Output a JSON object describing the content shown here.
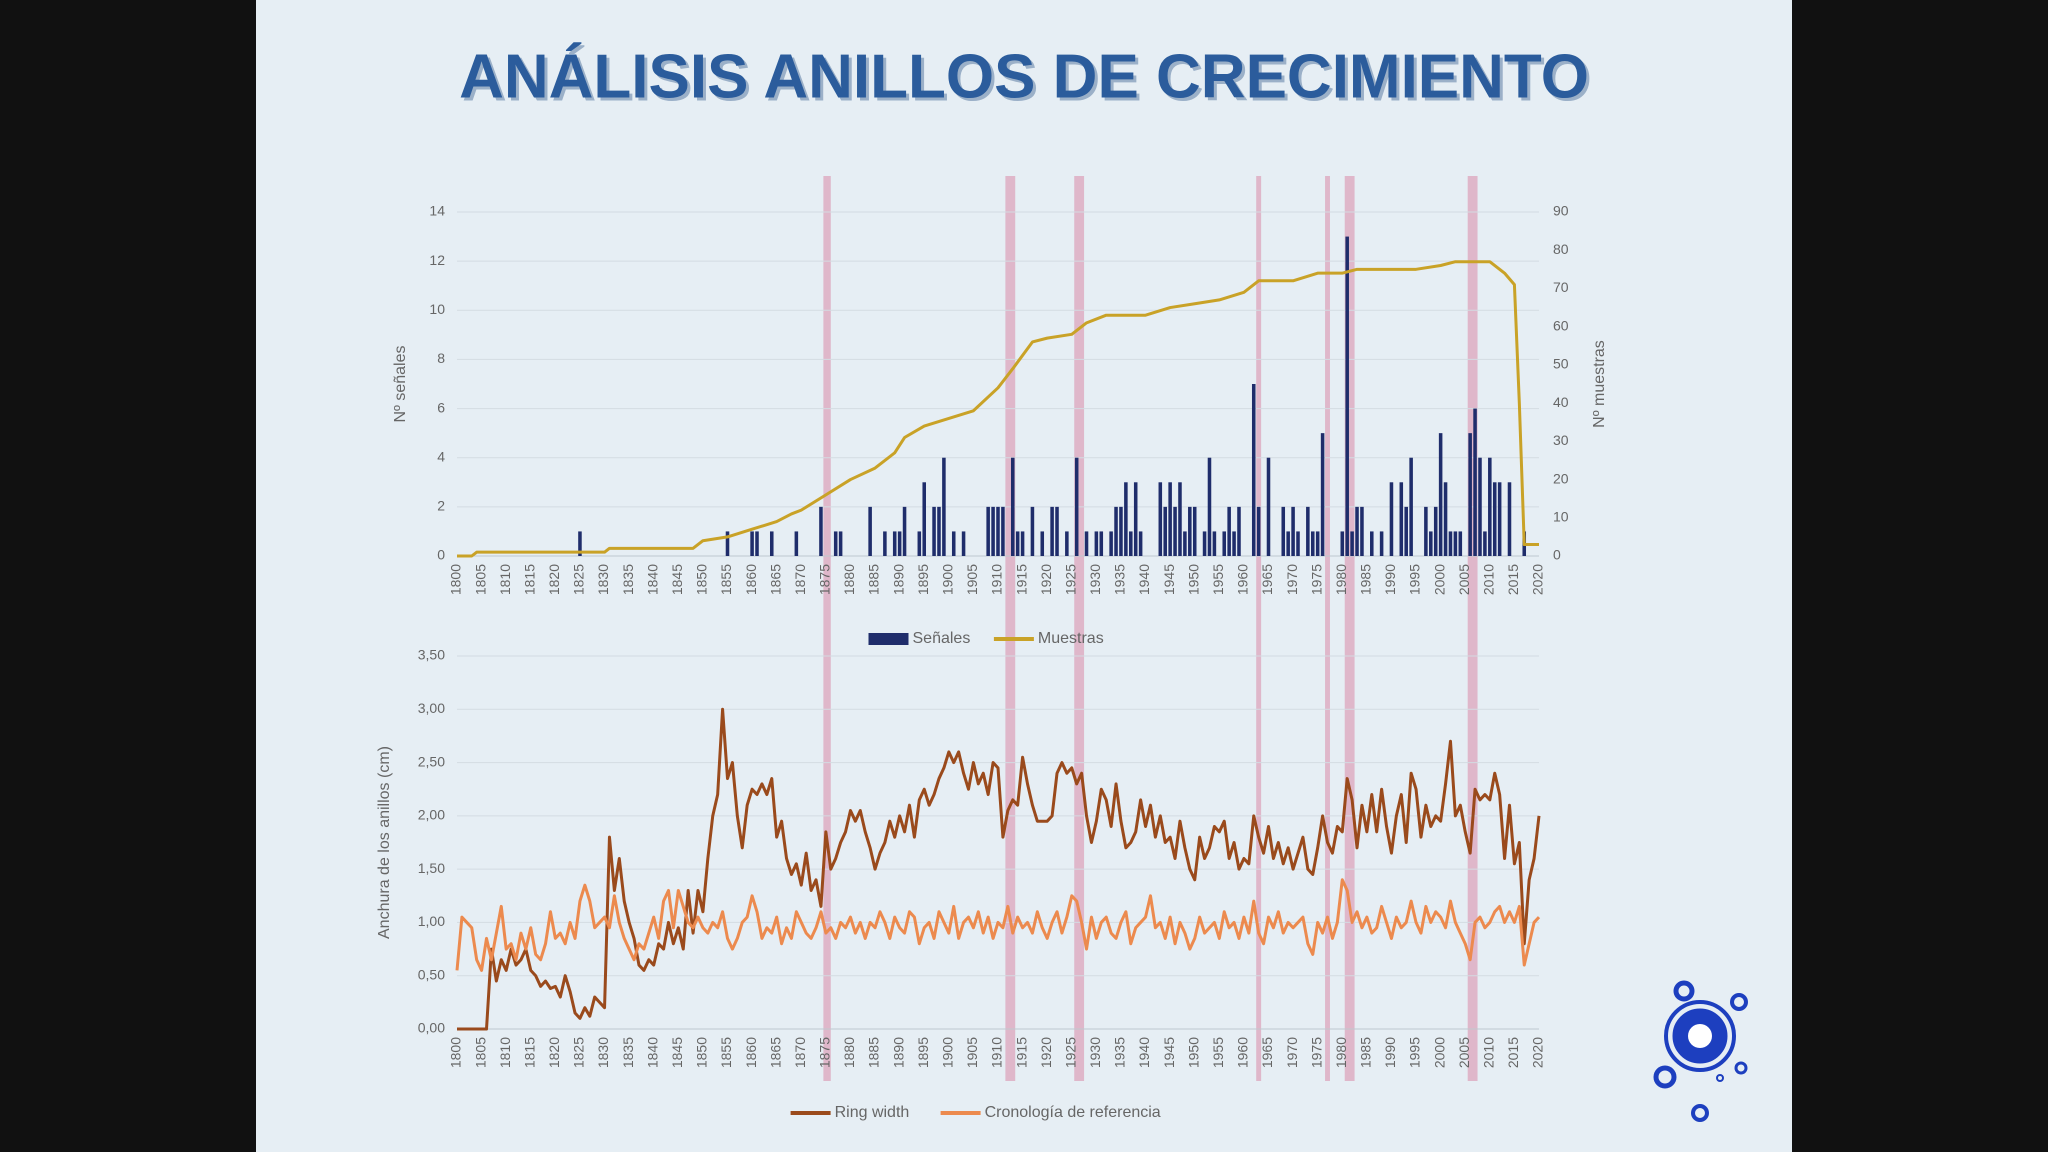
{
  "title": "ANÁLISIS ANILLOS DE CRECIMIENTO",
  "highlight_ranges": [
    [
      1874.5,
      1876
    ],
    [
      1911.5,
      1913.5
    ],
    [
      1925.5,
      1927.5
    ],
    [
      1962.5,
      1963.5
    ],
    [
      1976.5,
      1977.5
    ],
    [
      1980.5,
      1982.5
    ],
    [
      2005.5,
      2007.5
    ]
  ],
  "highlight_color": "#d98aa8",
  "chart_data": [
    {
      "type": "bar",
      "y_label": "Nº señales",
      "y2_label": "Nº muestras",
      "grid": true,
      "xlim": [
        1800,
        2020
      ],
      "xticks": [
        1800,
        1805,
        1810,
        1815,
        1820,
        1825,
        1830,
        1835,
        1840,
        1845,
        1850,
        1855,
        1860,
        1865,
        1870,
        1875,
        1880,
        1885,
        1890,
        1895,
        1900,
        1905,
        1910,
        1915,
        1920,
        1925,
        1930,
        1935,
        1940,
        1945,
        1950,
        1955,
        1960,
        1965,
        1970,
        1975,
        1980,
        1985,
        1990,
        1995,
        2000,
        2005,
        2010,
        2015,
        2020
      ],
      "ylim": [
        0,
        14
      ],
      "yticks": [
        0,
        2,
        4,
        6,
        8,
        10,
        12,
        14
      ],
      "y2lim": [
        0,
        90
      ],
      "y2ticks": [
        0,
        10,
        20,
        30,
        40,
        50,
        60,
        70,
        80,
        90
      ],
      "series": [
        {
          "name": "Señales",
          "type": "bar",
          "color": "#1f2d6b",
          "x": [
            1825,
            1855,
            1860,
            1861,
            1864,
            1869,
            1874,
            1877,
            1878,
            1884,
            1887,
            1889,
            1890,
            1891,
            1894,
            1895,
            1897,
            1898,
            1899,
            1901,
            1903,
            1908,
            1909,
            1910,
            1911,
            1913,
            1914,
            1915,
            1917,
            1919,
            1921,
            1922,
            1924,
            1926,
            1928,
            1930,
            1931,
            1933,
            1934,
            1935,
            1936,
            1937,
            1938,
            1939,
            1943,
            1944,
            1945,
            1946,
            1947,
            1948,
            1949,
            1950,
            1952,
            1953,
            1954,
            1956,
            1957,
            1958,
            1959,
            1962,
            1963,
            1965,
            1968,
            1969,
            1970,
            1971,
            1973,
            1974,
            1975,
            1976,
            1980,
            1981,
            1982,
            1983,
            1984,
            1986,
            1988,
            1990,
            1992,
            1993,
            1994,
            1997,
            1998,
            1999,
            2000,
            2001,
            2002,
            2003,
            2004,
            2006,
            2007,
            2008,
            2009,
            2010,
            2011,
            2012,
            2014,
            2017
          ],
          "values": [
            1,
            1,
            1,
            1,
            1,
            1,
            2,
            1,
            1,
            2,
            1,
            1,
            1,
            2,
            1,
            3,
            2,
            2,
            4,
            1,
            1,
            2,
            2,
            2,
            2,
            4,
            1,
            1,
            2,
            1,
            2,
            2,
            1,
            4,
            1,
            1,
            1,
            1,
            2,
            2,
            3,
            1,
            3,
            1,
            3,
            2,
            3,
            2,
            3,
            1,
            2,
            2,
            1,
            4,
            1,
            1,
            2,
            1,
            2,
            7,
            2,
            4,
            2,
            1,
            2,
            1,
            2,
            1,
            1,
            5,
            1,
            13,
            1,
            2,
            2,
            1,
            1,
            3,
            3,
            2,
            4,
            2,
            1,
            2,
            5,
            3,
            1,
            1,
            1,
            5,
            6,
            4,
            1,
            4,
            3,
            3,
            3,
            1
          ]
        },
        {
          "name": "Muestras",
          "type": "line",
          "axis": "y2",
          "color": "#c9a227",
          "x": [
            1800,
            1803,
            1804,
            1830,
            1831,
            1848,
            1850,
            1855,
            1860,
            1865,
            1868,
            1870,
            1875,
            1880,
            1885,
            1889,
            1891,
            1895,
            1900,
            1905,
            1910,
            1913,
            1917,
            1920,
            1925,
            1928,
            1932,
            1940,
            1945,
            1950,
            1955,
            1960,
            1963,
            1970,
            1975,
            1980,
            1983,
            1995,
            2000,
            2003,
            2010,
            2013,
            2015,
            2016,
            2017,
            2020
          ],
          "values": [
            0,
            0,
            1,
            1,
            2,
            2,
            4,
            5,
            7,
            9,
            11,
            12,
            16,
            20,
            23,
            27,
            31,
            34,
            36,
            38,
            44,
            49,
            56,
            57,
            58,
            61,
            63,
            63,
            65,
            66,
            67,
            69,
            72,
            72,
            74,
            74,
            75,
            75,
            76,
            77,
            77,
            74,
            71,
            40,
            3,
            3
          ]
        }
      ]
    },
    {
      "type": "line",
      "y_label": "Anchura de los anillos (cm)",
      "grid": true,
      "xlim": [
        1800,
        2020
      ],
      "xticks": [
        1800,
        1805,
        1810,
        1815,
        1820,
        1825,
        1830,
        1835,
        1840,
        1845,
        1850,
        1855,
        1860,
        1865,
        1870,
        1875,
        1880,
        1885,
        1890,
        1895,
        1900,
        1905,
        1910,
        1915,
        1920,
        1925,
        1930,
        1935,
        1940,
        1945,
        1950,
        1955,
        1960,
        1965,
        1970,
        1975,
        1980,
        1985,
        1990,
        1995,
        2000,
        2005,
        2010,
        2015,
        2020
      ],
      "ylim": [
        0,
        3.5
      ],
      "yticks": [
        {
          "value": 0,
          "label": "0,00"
        },
        {
          "value": 0.5,
          "label": "0,50"
        },
        {
          "value": 1,
          "label": "1,00"
        },
        {
          "value": 1.5,
          "label": "1,50"
        },
        {
          "value": 2,
          "label": "2,00"
        },
        {
          "value": 2.5,
          "label": "2,50"
        },
        {
          "value": 3,
          "label": "3,00"
        },
        {
          "value": 3.5,
          "label": "3,50"
        }
      ],
      "x": [
        1800,
        1801,
        1802,
        1803,
        1804,
        1805,
        1806,
        1807,
        1808,
        1809,
        1810,
        1811,
        1812,
        1813,
        1814,
        1815,
        1816,
        1817,
        1818,
        1819,
        1820,
        1821,
        1822,
        1823,
        1824,
        1825,
        1826,
        1827,
        1828,
        1829,
        1830,
        1831,
        1832,
        1833,
        1834,
        1835,
        1836,
        1837,
        1838,
        1839,
        1840,
        1841,
        1842,
        1843,
        1844,
        1845,
        1846,
        1847,
        1848,
        1849,
        1850,
        1851,
        1852,
        1853,
        1854,
        1855,
        1856,
        1857,
        1858,
        1859,
        1860,
        1861,
        1862,
        1863,
        1864,
        1865,
        1866,
        1867,
        1868,
        1869,
        1870,
        1871,
        1872,
        1873,
        1874,
        1875,
        1876,
        1877,
        1878,
        1879,
        1880,
        1881,
        1882,
        1883,
        1884,
        1885,
        1886,
        1887,
        1888,
        1889,
        1890,
        1891,
        1892,
        1893,
        1894,
        1895,
        1896,
        1897,
        1898,
        1899,
        1900,
        1901,
        1902,
        1903,
        1904,
        1905,
        1906,
        1907,
        1908,
        1909,
        1910,
        1911,
        1912,
        1913,
        1914,
        1915,
        1916,
        1917,
        1918,
        1919,
        1920,
        1921,
        1922,
        1923,
        1924,
        1925,
        1926,
        1927,
        1928,
        1929,
        1930,
        1931,
        1932,
        1933,
        1934,
        1935,
        1936,
        1937,
        1938,
        1939,
        1940,
        1941,
        1942,
        1943,
        1944,
        1945,
        1946,
        1947,
        1948,
        1949,
        1950,
        1951,
        1952,
        1953,
        1954,
        1955,
        1956,
        1957,
        1958,
        1959,
        1960,
        1961,
        1962,
        1963,
        1964,
        1965,
        1966,
        1967,
        1968,
        1969,
        1970,
        1971,
        1972,
        1973,
        1974,
        1975,
        1976,
        1977,
        1978,
        1979,
        1980,
        1981,
        1982,
        1983,
        1984,
        1985,
        1986,
        1987,
        1988,
        1989,
        1990,
        1991,
        1992,
        1993,
        1994,
        1995,
        1996,
        1997,
        1998,
        1999,
        2000,
        2001,
        2002,
        2003,
        2004,
        2005,
        2006,
        2007,
        2008,
        2009,
        2010,
        2011,
        2012,
        2013,
        2014,
        2015,
        2016,
        2017,
        2018,
        2019,
        2020
      ],
      "series": [
        {
          "name": "Ring width",
          "color": "#9a4a1c",
          "values": [
            0,
            0,
            0,
            0,
            0,
            0,
            0,
            0.75,
            0.45,
            0.65,
            0.55,
            0.75,
            0.6,
            0.65,
            0.75,
            0.55,
            0.5,
            0.4,
            0.45,
            0.38,
            0.4,
            0.3,
            0.5,
            0.35,
            0.15,
            0.1,
            0.2,
            0.12,
            0.3,
            0.25,
            0.2,
            1.8,
            1.3,
            1.6,
            1.2,
            1.0,
            0.85,
            0.6,
            0.55,
            0.65,
            0.6,
            0.8,
            0.75,
            1.0,
            0.8,
            0.95,
            0.75,
            1.3,
            0.9,
            1.3,
            1.1,
            1.6,
            2.0,
            2.2,
            3.0,
            2.35,
            2.5,
            2.0,
            1.7,
            2.1,
            2.25,
            2.2,
            2.3,
            2.2,
            2.35,
            1.8,
            1.95,
            1.6,
            1.45,
            1.55,
            1.35,
            1.65,
            1.3,
            1.4,
            1.15,
            1.85,
            1.5,
            1.6,
            1.75,
            1.85,
            2.05,
            1.95,
            2.05,
            1.85,
            1.7,
            1.5,
            1.65,
            1.75,
            1.95,
            1.8,
            2.0,
            1.85,
            2.1,
            1.8,
            2.15,
            2.25,
            2.1,
            2.2,
            2.35,
            2.45,
            2.6,
            2.5,
            2.6,
            2.4,
            2.25,
            2.5,
            2.3,
            2.4,
            2.2,
            2.5,
            2.45,
            1.8,
            2.05,
            2.15,
            2.1,
            2.55,
            2.3,
            2.1,
            1.95,
            1.95,
            1.95,
            2.0,
            2.4,
            2.5,
            2.4,
            2.45,
            2.3,
            2.4,
            2.0,
            1.75,
            1.95,
            2.25,
            2.15,
            1.9,
            2.3,
            1.95,
            1.7,
            1.75,
            1.85,
            2.15,
            1.9,
            2.1,
            1.8,
            2.0,
            1.75,
            1.8,
            1.6,
            1.95,
            1.7,
            1.5,
            1.4,
            1.8,
            1.6,
            1.7,
            1.9,
            1.85,
            1.95,
            1.6,
            1.75,
            1.5,
            1.6,
            1.55,
            2.0,
            1.8,
            1.65,
            1.9,
            1.6,
            1.75,
            1.55,
            1.7,
            1.5,
            1.65,
            1.8,
            1.5,
            1.45,
            1.7,
            2.0,
            1.75,
            1.65,
            1.9,
            1.85,
            2.35,
            2.15,
            1.7,
            2.1,
            1.85,
            2.2,
            1.85,
            2.25,
            1.9,
            1.65,
            2.0,
            2.2,
            1.75,
            2.4,
            2.25,
            1.8,
            2.1,
            1.9,
            2.0,
            1.95,
            2.3,
            2.7,
            2.0,
            2.1,
            1.85,
            1.65,
            2.25,
            2.15,
            2.2,
            2.15,
            2.4,
            2.2,
            1.6,
            2.1,
            1.55,
            1.75,
            0.8,
            1.4,
            1.6,
            2.0
          ]
        },
        {
          "name": "Cronología de referencia",
          "color": "#ec8a4e",
          "values": [
            0.55,
            1.05,
            1.0,
            0.95,
            0.65,
            0.55,
            0.85,
            0.65,
            0.9,
            1.15,
            0.75,
            0.8,
            0.65,
            0.9,
            0.75,
            0.95,
            0.7,
            0.65,
            0.8,
            1.1,
            0.85,
            0.9,
            0.8,
            1.0,
            0.85,
            1.2,
            1.35,
            1.2,
            0.95,
            1.0,
            1.05,
            0.95,
            1.25,
            1.0,
            0.85,
            0.75,
            0.65,
            0.8,
            0.75,
            0.9,
            1.05,
            0.85,
            1.2,
            1.3,
            0.95,
            1.3,
            1.15,
            1.0,
            0.95,
            1.05,
            0.95,
            0.9,
            1.0,
            0.95,
            1.1,
            0.85,
            0.75,
            0.85,
            1.0,
            1.05,
            1.25,
            1.1,
            0.85,
            0.95,
            0.9,
            1.05,
            0.8,
            0.95,
            0.85,
            1.1,
            1.0,
            0.9,
            0.85,
            0.95,
            1.1,
            0.9,
            0.95,
            0.85,
            1.0,
            0.95,
            1.05,
            0.9,
            1.0,
            0.85,
            1.0,
            0.95,
            1.1,
            1.0,
            0.85,
            1.05,
            0.95,
            0.9,
            1.1,
            1.05,
            0.8,
            0.95,
            1.0,
            0.85,
            1.1,
            1.0,
            0.9,
            1.15,
            0.85,
            1.0,
            1.05,
            0.95,
            1.1,
            0.9,
            1.05,
            0.85,
            1.0,
            0.95,
            1.15,
            0.9,
            1.05,
            0.95,
            1.0,
            0.9,
            1.1,
            0.95,
            0.85,
            1.0,
            1.1,
            0.9,
            1.05,
            1.25,
            1.2,
            1.0,
            0.75,
            1.05,
            0.85,
            1.0,
            1.05,
            0.9,
            0.85,
            1.0,
            1.1,
            0.8,
            0.95,
            1.0,
            1.05,
            1.25,
            0.95,
            1.0,
            0.85,
            1.05,
            0.8,
            1.0,
            0.9,
            0.75,
            0.85,
            1.05,
            0.9,
            0.95,
            1.0,
            0.85,
            1.1,
            0.95,
            1.0,
            0.85,
            1.05,
            0.9,
            1.2,
            0.9,
            0.8,
            1.05,
            0.95,
            1.1,
            0.9,
            1.0,
            0.95,
            1.0,
            1.05,
            0.8,
            0.7,
            1.0,
            0.9,
            1.05,
            0.85,
            1.0,
            1.4,
            1.3,
            1.0,
            1.1,
            0.95,
            1.05,
            0.9,
            0.95,
            1.15,
            1.0,
            0.85,
            1.05,
            0.95,
            1.0,
            1.2,
            1.0,
            0.9,
            1.15,
            1.0,
            1.1,
            1.05,
            0.95,
            1.2,
            1.0,
            0.9,
            0.8,
            0.65,
            1.0,
            1.05,
            0.95,
            1.0,
            1.1,
            1.15,
            1.0,
            1.1,
            1.0,
            1.15,
            0.6,
            0.8,
            1.0,
            1.05
          ]
        }
      ]
    }
  ]
}
